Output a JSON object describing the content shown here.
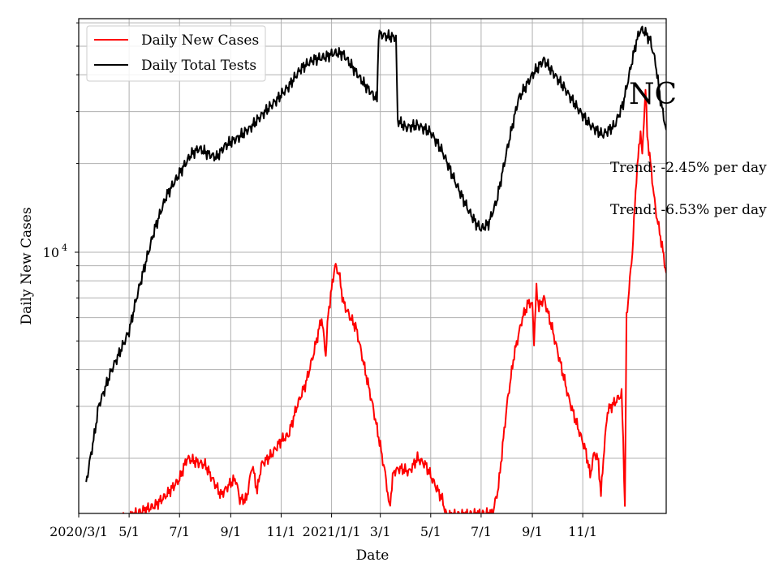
{
  "chart_data": {
    "type": "line",
    "title": "",
    "xlabel": "Date",
    "ylabel": "Daily New Cases",
    "yscale": "log",
    "grid": true,
    "legend_position": "top-left",
    "x_start": "2020-03-01",
    "x_end": "2022-02-10",
    "ylim": [
      1300,
      62000
    ],
    "x_ticks": [
      {
        "date": "2020-03-01",
        "label": "2020/3/1"
      },
      {
        "date": "2020-05-01",
        "label": "5/1"
      },
      {
        "date": "2020-07-01",
        "label": "7/1"
      },
      {
        "date": "2020-09-01",
        "label": "9/1"
      },
      {
        "date": "2020-11-01",
        "label": "11/1"
      },
      {
        "date": "2021-01-01",
        "label": "2021/1/1"
      },
      {
        "date": "2021-03-01",
        "label": "3/1"
      },
      {
        "date": "2021-05-01",
        "label": "5/1"
      },
      {
        "date": "2021-07-01",
        "label": "7/1"
      },
      {
        "date": "2021-09-01",
        "label": "9/1"
      },
      {
        "date": "2021-11-01",
        "label": "11/1"
      }
    ],
    "y_tick_label": {
      "base": "10",
      "exponent": "4",
      "value": 10000
    },
    "series": [
      {
        "name": "Daily New Cases",
        "color": "#ff0000",
        "points": [
          [
            "2020-04-10",
            1200
          ],
          [
            "2020-05-10",
            1300
          ],
          [
            "2020-06-01",
            1380
          ],
          [
            "2020-06-15",
            1500
          ],
          [
            "2020-07-01",
            1700
          ],
          [
            "2020-07-10",
            2000
          ],
          [
            "2020-07-20",
            1950
          ],
          [
            "2020-08-01",
            1900
          ],
          [
            "2020-08-10",
            1700
          ],
          [
            "2020-08-20",
            1500
          ],
          [
            "2020-09-01",
            1650
          ],
          [
            "2020-09-07",
            1700
          ],
          [
            "2020-09-12",
            1450
          ],
          [
            "2020-09-20",
            1450
          ],
          [
            "2020-09-27",
            1900
          ],
          [
            "2020-10-03",
            1550
          ],
          [
            "2020-10-08",
            1900
          ],
          [
            "2020-10-20",
            2050
          ],
          [
            "2020-11-01",
            2300
          ],
          [
            "2020-11-10",
            2400
          ],
          [
            "2020-11-20",
            3000
          ],
          [
            "2020-12-01",
            3600
          ],
          [
            "2020-12-10",
            4500
          ],
          [
            "2020-12-20",
            6000
          ],
          [
            "2020-12-25",
            4500
          ],
          [
            "2020-12-28",
            6200
          ],
          [
            "2021-01-05",
            9000
          ],
          [
            "2021-01-10",
            8500
          ],
          [
            "2021-01-15",
            6800
          ],
          [
            "2021-01-20",
            6300
          ],
          [
            "2021-01-31",
            5500
          ],
          [
            "2021-02-08",
            4300
          ],
          [
            "2021-02-20",
            3000
          ],
          [
            "2021-03-01",
            2200
          ],
          [
            "2021-03-08",
            1700
          ],
          [
            "2021-03-12",
            1350
          ],
          [
            "2021-03-17",
            1800
          ],
          [
            "2021-03-25",
            1850
          ],
          [
            "2021-04-05",
            1800
          ],
          [
            "2021-04-15",
            2000
          ],
          [
            "2021-04-25",
            1900
          ],
          [
            "2021-05-05",
            1650
          ],
          [
            "2021-05-15",
            1450
          ],
          [
            "2021-05-20",
            1280
          ],
          [
            "2021-07-15",
            1300
          ],
          [
            "2021-07-22",
            1600
          ],
          [
            "2021-08-01",
            3000
          ],
          [
            "2021-08-10",
            4500
          ],
          [
            "2021-08-20",
            6000
          ],
          [
            "2021-08-28",
            6800
          ],
          [
            "2021-09-01",
            6600
          ],
          [
            "2021-09-03",
            5000
          ],
          [
            "2021-09-06",
            7500
          ],
          [
            "2021-09-09",
            6500
          ],
          [
            "2021-09-15",
            7000
          ],
          [
            "2021-09-25",
            5500
          ],
          [
            "2021-10-05",
            4200
          ],
          [
            "2021-10-15",
            3200
          ],
          [
            "2021-10-25",
            2600
          ],
          [
            "2021-11-05",
            2100
          ],
          [
            "2021-11-10",
            1750
          ],
          [
            "2021-11-15",
            2100
          ],
          [
            "2021-11-20",
            1950
          ],
          [
            "2021-11-23",
            1500
          ],
          [
            "2021-11-26",
            2000
          ],
          [
            "2021-12-01",
            2900
          ],
          [
            "2021-12-10",
            3100
          ],
          [
            "2021-12-18",
            3300
          ],
          [
            "2021-12-20",
            2300
          ],
          [
            "2021-12-22",
            1350
          ],
          [
            "2021-12-24",
            6000
          ],
          [
            "2021-12-31",
            10000
          ],
          [
            "2022-01-05",
            18000
          ],
          [
            "2022-01-10",
            26000
          ],
          [
            "2022-01-12",
            21000
          ],
          [
            "2022-01-14",
            28000
          ],
          [
            "2022-01-16",
            36000
          ],
          [
            "2022-01-18",
            25000
          ],
          [
            "2022-01-22",
            20000
          ],
          [
            "2022-01-28",
            14000
          ],
          [
            "2022-02-05",
            10500
          ],
          [
            "2022-02-10",
            8500
          ]
        ]
      },
      {
        "name": "Daily Total Tests",
        "color": "#000000",
        "points": [
          [
            "2020-03-10",
            1650
          ],
          [
            "2020-03-15",
            2000
          ],
          [
            "2020-03-20",
            2400
          ],
          [
            "2020-03-25",
            3000
          ],
          [
            "2020-04-01",
            3400
          ],
          [
            "2020-04-10",
            4000
          ],
          [
            "2020-04-20",
            4600
          ],
          [
            "2020-05-01",
            5400
          ],
          [
            "2020-05-10",
            7000
          ],
          [
            "2020-05-20",
            9000
          ],
          [
            "2020-06-01",
            12000
          ],
          [
            "2020-06-15",
            15500
          ],
          [
            "2020-07-01",
            18500
          ],
          [
            "2020-07-15",
            21500
          ],
          [
            "2020-07-25",
            22500
          ],
          [
            "2020-08-05",
            21500
          ],
          [
            "2020-08-15",
            21000
          ],
          [
            "2020-08-25",
            23000
          ],
          [
            "2020-09-10",
            24500
          ],
          [
            "2020-09-25",
            26500
          ],
          [
            "2020-10-10",
            29500
          ],
          [
            "2020-10-25",
            32500
          ],
          [
            "2020-11-10",
            36500
          ],
          [
            "2020-11-25",
            42000
          ],
          [
            "2020-12-10",
            45000
          ],
          [
            "2020-12-25",
            46000
          ],
          [
            "2021-01-05",
            47500
          ],
          [
            "2021-01-15",
            47000
          ],
          [
            "2021-01-25",
            43000
          ],
          [
            "2021-02-10",
            37000
          ],
          [
            "2021-02-25",
            33000
          ],
          [
            "2021-02-27",
            55000
          ],
          [
            "2021-03-10",
            54000
          ],
          [
            "2021-03-20",
            53500
          ],
          [
            "2021-03-22",
            28000
          ],
          [
            "2021-04-01",
            26500
          ],
          [
            "2021-04-15",
            27000
          ],
          [
            "2021-05-01",
            25500
          ],
          [
            "2021-05-15",
            22000
          ],
          [
            "2021-06-01",
            17000
          ],
          [
            "2021-06-15",
            14000
          ],
          [
            "2021-06-25",
            12500
          ],
          [
            "2021-07-01",
            12000
          ],
          [
            "2021-07-10",
            12500
          ],
          [
            "2021-07-20",
            15000
          ],
          [
            "2021-08-01",
            22000
          ],
          [
            "2021-08-15",
            33000
          ],
          [
            "2021-09-01",
            40000
          ],
          [
            "2021-09-15",
            45000
          ],
          [
            "2021-09-25",
            41000
          ],
          [
            "2021-10-10",
            36000
          ],
          [
            "2021-10-25",
            31000
          ],
          [
            "2021-11-10",
            27000
          ],
          [
            "2021-11-25",
            25000
          ],
          [
            "2021-12-10",
            27000
          ],
          [
            "2021-12-20",
            32000
          ],
          [
            "2021-12-31",
            45000
          ],
          [
            "2022-01-05",
            52000
          ],
          [
            "2022-01-10",
            57000
          ],
          [
            "2022-01-15",
            56000
          ],
          [
            "2022-01-22",
            52000
          ],
          [
            "2022-01-28",
            44000
          ],
          [
            "2022-02-03",
            33000
          ],
          [
            "2022-02-10",
            26000
          ]
        ]
      }
    ],
    "annotations": {
      "state": "NC",
      "trend_tests": "Trend: -2.45% per day",
      "trend_cases": "Trend: -6.53% per day"
    }
  }
}
